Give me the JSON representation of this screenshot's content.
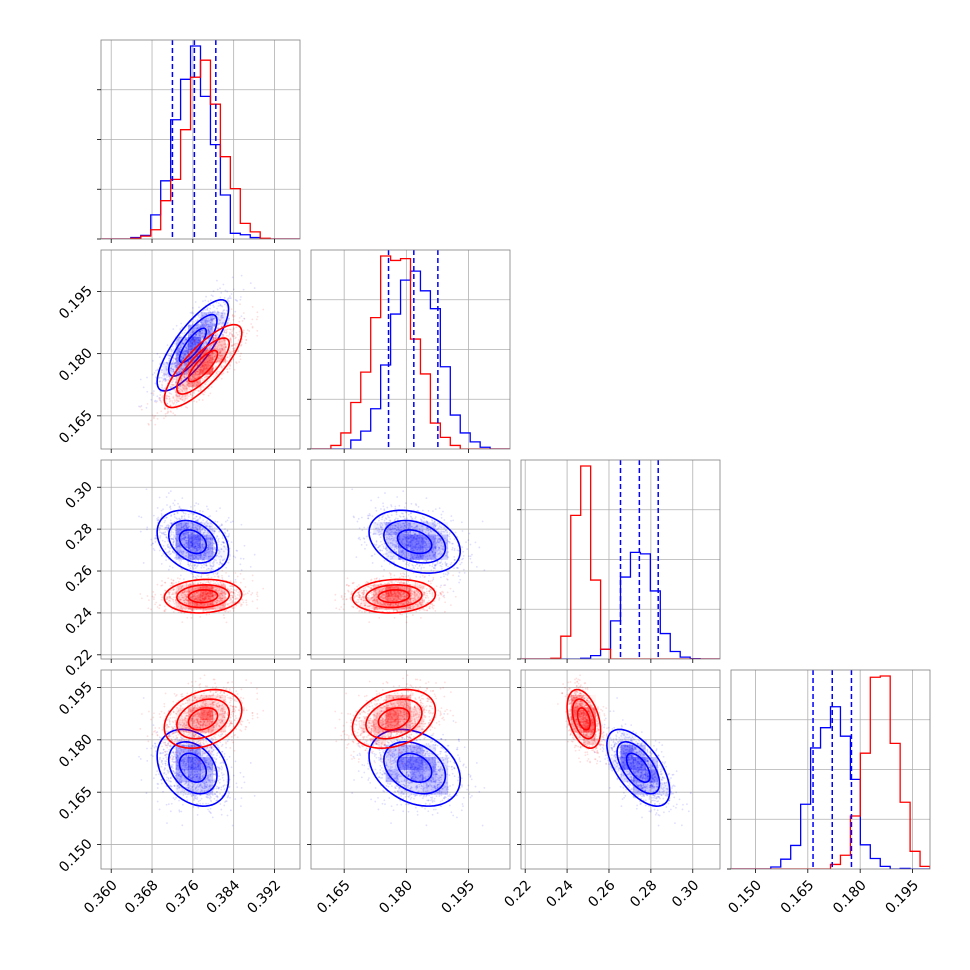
{
  "colors": {
    "series_a": "#0000ff",
    "series_b": "#ff0000",
    "grid": "#b0b0b0",
    "frame": "#808080"
  },
  "chart_data": {
    "type": "corner",
    "parameters": [
      {
        "range": [
          0.358,
          0.397
        ],
        "ticks": [
          "0.360",
          "0.368",
          "0.376",
          "0.384",
          "0.392"
        ]
      },
      {
        "range": [
          0.157,
          0.205
        ],
        "ticks": [
          "0.165",
          "0.180",
          "0.195"
        ]
      },
      {
        "range": [
          0.218,
          0.313
        ],
        "ticks": [
          "0.22",
          "0.24",
          "0.26",
          "0.28",
          "0.30"
        ]
      },
      {
        "range": [
          0.143,
          0.2
        ],
        "ticks": [
          "0.150",
          "0.165",
          "0.180",
          "0.195"
        ]
      }
    ],
    "series": [
      {
        "color": "#0000ff",
        "mean": [
          0.376,
          0.182,
          0.274,
          0.172
        ],
        "sd": [
          0.0035,
          0.0055,
          0.0075,
          0.0055
        ],
        "corr": [
          [
            1,
            0.8,
            -0.3,
            -0.3
          ],
          [
            0.8,
            1,
            -0.3,
            -0.3
          ],
          [
            -0.3,
            -0.3,
            1,
            -0.6
          ],
          [
            -0.3,
            -0.3,
            -0.6,
            1
          ]
        ]
      },
      {
        "color": "#ff0000",
        "mean": [
          0.378,
          0.177,
          0.248,
          0.186
        ],
        "sd": [
          0.0038,
          0.005,
          0.004,
          0.0042
        ],
        "corr": [
          [
            1,
            0.8,
            0.1,
            0.3
          ],
          [
            0.8,
            1,
            0.1,
            0.3
          ],
          [
            0.1,
            0.1,
            1,
            -0.4
          ],
          [
            0.3,
            0.3,
            -0.4,
            1
          ]
        ]
      }
    ],
    "quantile_lines": [
      [
        0.372,
        0.3763,
        0.3805
      ],
      [
        0.1757,
        0.1818,
        0.1876
      ],
      [
        0.2655,
        0.2745,
        0.2835
      ],
      [
        0.1665,
        0.172,
        0.1775
      ]
    ],
    "grid": true,
    "sample_points_per_series": 1200
  }
}
